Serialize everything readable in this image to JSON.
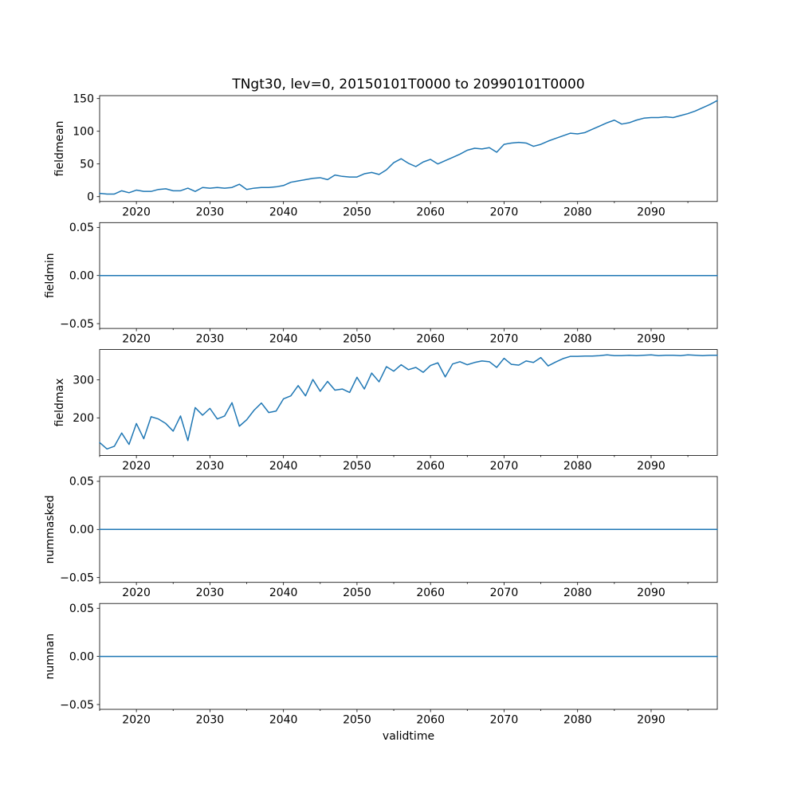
{
  "figure": {
    "title": "TNgt30, lev=0, 20150101T0000 to 20990101T0000",
    "xlabel": "validtime",
    "line_color": "#1f77b4",
    "background": "#ffffff",
    "text_color": "#000000"
  },
  "chart_data": [
    {
      "type": "line",
      "name": "fieldmean",
      "ylabel": "fieldmean",
      "xlim": [
        2015,
        2099
      ],
      "ylim": [
        -7.4,
        154.5
      ],
      "xticks": [
        2020,
        2030,
        2040,
        2050,
        2060,
        2070,
        2080,
        2090
      ],
      "xticks_minor": [
        2015,
        2025,
        2035,
        2045,
        2055,
        2065,
        2075,
        2085,
        2095
      ],
      "yticks": [
        0,
        50,
        100,
        150
      ],
      "ytick_labels": [
        "0",
        "50",
        "100",
        "150"
      ],
      "grid": false,
      "legend": null,
      "x": [
        2015,
        2016,
        2017,
        2018,
        2019,
        2020,
        2021,
        2022,
        2023,
        2024,
        2025,
        2026,
        2027,
        2028,
        2029,
        2030,
        2031,
        2032,
        2033,
        2034,
        2035,
        2036,
        2037,
        2038,
        2039,
        2040,
        2041,
        2042,
        2043,
        2044,
        2045,
        2046,
        2047,
        2048,
        2049,
        2050,
        2051,
        2052,
        2053,
        2054,
        2055,
        2056,
        2057,
        2058,
        2059,
        2060,
        2061,
        2062,
        2063,
        2064,
        2065,
        2066,
        2067,
        2068,
        2069,
        2070,
        2071,
        2072,
        2073,
        2074,
        2075,
        2076,
        2077,
        2078,
        2079,
        2080,
        2081,
        2082,
        2083,
        2084,
        2085,
        2086,
        2087,
        2088,
        2089,
        2090,
        2091,
        2092,
        2093,
        2094,
        2095,
        2096,
        2097,
        2098,
        2099
      ],
      "values": [
        5,
        4,
        4,
        9,
        6,
        10,
        8,
        8,
        11,
        12,
        9,
        9,
        13,
        8,
        14,
        13,
        14,
        13,
        14,
        19,
        11,
        13,
        14,
        14,
        15,
        17,
        22,
        24,
        26,
        28,
        29,
        26,
        33,
        31,
        30,
        30,
        35,
        37,
        34,
        41,
        52,
        58,
        51,
        46,
        53,
        57,
        50,
        55,
        60,
        65,
        71,
        74,
        73,
        75,
        68,
        80,
        82,
        83,
        82,
        77,
        80,
        85,
        89,
        93,
        97,
        96,
        98,
        103,
        108,
        113,
        117,
        111,
        113,
        117,
        120,
        121,
        121,
        122,
        121,
        124,
        127,
        131,
        136,
        141,
        147
      ]
    },
    {
      "type": "line",
      "name": "fieldmin",
      "ylabel": "fieldmin",
      "xlim": [
        2015,
        2099
      ],
      "ylim": [
        -0.055,
        0.055
      ],
      "xticks": [
        2020,
        2030,
        2040,
        2050,
        2060,
        2070,
        2080,
        2090
      ],
      "xticks_minor": [
        2015,
        2025,
        2035,
        2045,
        2055,
        2065,
        2075,
        2085,
        2095
      ],
      "yticks": [
        -0.05,
        0.0,
        0.05
      ],
      "ytick_labels": [
        "−0.05",
        "0.00",
        "0.05"
      ],
      "grid": false,
      "legend": null,
      "constant": 0
    },
    {
      "type": "line",
      "name": "fieldmax",
      "ylabel": "fieldmax",
      "xlim": [
        2015,
        2099
      ],
      "ylim": [
        101,
        380
      ],
      "xticks": [
        2020,
        2030,
        2040,
        2050,
        2060,
        2070,
        2080,
        2090
      ],
      "xticks_minor": [
        2015,
        2025,
        2035,
        2045,
        2055,
        2065,
        2075,
        2085,
        2095
      ],
      "yticks": [
        200,
        300
      ],
      "ytick_labels": [
        "200",
        "300"
      ],
      "grid": false,
      "legend": null,
      "x": [
        2015,
        2016,
        2017,
        2018,
        2019,
        2020,
        2021,
        2022,
        2023,
        2024,
        2025,
        2026,
        2027,
        2028,
        2029,
        2030,
        2031,
        2032,
        2033,
        2034,
        2035,
        2036,
        2037,
        2038,
        2039,
        2040,
        2041,
        2042,
        2043,
        2044,
        2045,
        2046,
        2047,
        2048,
        2049,
        2050,
        2051,
        2052,
        2053,
        2054,
        2055,
        2056,
        2057,
        2058,
        2059,
        2060,
        2061,
        2062,
        2063,
        2064,
        2065,
        2066,
        2067,
        2068,
        2069,
        2070,
        2071,
        2072,
        2073,
        2074,
        2075,
        2076,
        2077,
        2078,
        2079,
        2080,
        2081,
        2082,
        2083,
        2084,
        2085,
        2086,
        2087,
        2088,
        2089,
        2090,
        2091,
        2092,
        2093,
        2094,
        2095,
        2096,
        2097,
        2098,
        2099
      ],
      "values": [
        135,
        118,
        125,
        160,
        130,
        185,
        145,
        203,
        197,
        185,
        165,
        205,
        140,
        227,
        207,
        225,
        197,
        205,
        240,
        178,
        195,
        220,
        239,
        214,
        218,
        250,
        258,
        285,
        258,
        301,
        270,
        296,
        273,
        276,
        267,
        307,
        276,
        318,
        295,
        335,
        323,
        340,
        327,
        333,
        320,
        338,
        345,
        308,
        342,
        348,
        340,
        346,
        350,
        348,
        333,
        357,
        341,
        339,
        350,
        346,
        359,
        337,
        347,
        356,
        362,
        362,
        363,
        363,
        364,
        366,
        364,
        364,
        365,
        364,
        365,
        366,
        364,
        365,
        365,
        364,
        366,
        365,
        364,
        365,
        365
      ]
    },
    {
      "type": "line",
      "name": "nummasked",
      "ylabel": "nummasked",
      "xlim": [
        2015,
        2099
      ],
      "ylim": [
        -0.055,
        0.055
      ],
      "xticks": [
        2020,
        2030,
        2040,
        2050,
        2060,
        2070,
        2080,
        2090
      ],
      "xticks_minor": [
        2015,
        2025,
        2035,
        2045,
        2055,
        2065,
        2075,
        2085,
        2095
      ],
      "yticks": [
        -0.05,
        0.0,
        0.05
      ],
      "ytick_labels": [
        "−0.05",
        "0.00",
        "0.05"
      ],
      "grid": false,
      "legend": null,
      "constant": 0
    },
    {
      "type": "line",
      "name": "numnan",
      "ylabel": "numnan",
      "xlim": [
        2015,
        2099
      ],
      "ylim": [
        -0.055,
        0.055
      ],
      "xticks": [
        2020,
        2030,
        2040,
        2050,
        2060,
        2070,
        2080,
        2090
      ],
      "xticks_minor": [
        2015,
        2025,
        2035,
        2045,
        2055,
        2065,
        2075,
        2085,
        2095
      ],
      "yticks": [
        -0.05,
        0.0,
        0.05
      ],
      "ytick_labels": [
        "−0.05",
        "0.00",
        "0.05"
      ],
      "grid": false,
      "legend": null,
      "constant": 0
    }
  ]
}
